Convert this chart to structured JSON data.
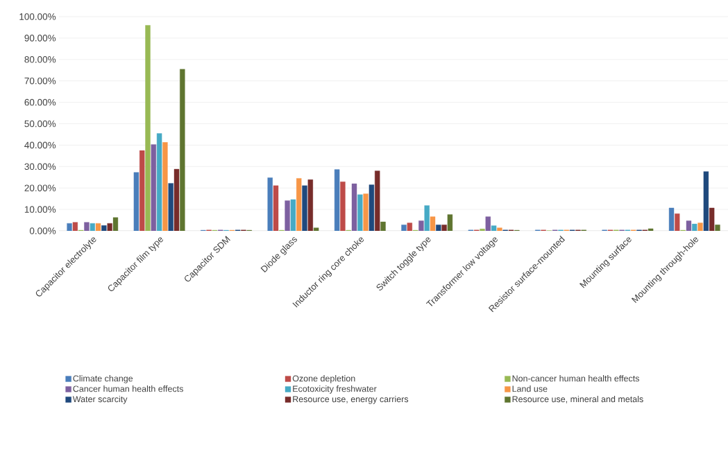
{
  "chart_data": {
    "type": "bar",
    "categories": [
      "Capacitor electrolyte",
      "Capacitor film type",
      "Capacitor SDM",
      "Diode glass",
      "Inductor ring core choke",
      "Switch toggle type",
      "Transformer low voltage",
      "Resistor surface-mounted",
      "Mounting surface",
      "Mounting through-hole"
    ],
    "series": [
      {
        "name": "Climate change",
        "color": "#4a7ebb",
        "values": [
          3.5,
          27.3,
          0.3,
          24.8,
          28.6,
          2.8,
          0.4,
          0.4,
          0.4,
          10.7
        ]
      },
      {
        "name": "Ozone depletion",
        "color": "#be4b48",
        "values": [
          4.0,
          37.5,
          0.4,
          21.1,
          22.9,
          3.7,
          0.4,
          0.4,
          0.4,
          8.0
        ]
      },
      {
        "name": "Non-cancer human health effects",
        "color": "#98b954",
        "values": [
          0.3,
          96.0,
          0.3,
          0.3,
          0.3,
          0.3,
          0.9,
          0.1,
          0.4,
          0.3
        ]
      },
      {
        "name": "Cancer human health effects",
        "color": "#7d60a0",
        "values": [
          4.0,
          40.3,
          0.4,
          14.1,
          22.0,
          4.7,
          6.6,
          0.4,
          0.4,
          4.7
        ]
      },
      {
        "name": "Ecotoxicity freshwater",
        "color": "#46aac5",
        "values": [
          3.5,
          45.5,
          0.3,
          14.6,
          16.9,
          11.8,
          2.4,
          0.4,
          0.4,
          3.2
        ]
      },
      {
        "name": "Land use",
        "color": "#f79646",
        "values": [
          3.5,
          41.3,
          0.3,
          24.5,
          17.3,
          6.6,
          1.4,
          0.4,
          0.4,
          3.7
        ]
      },
      {
        "name": "Water scarcity",
        "color": "#1f497d",
        "values": [
          2.5,
          22.2,
          0.4,
          21.1,
          21.5,
          2.8,
          0.4,
          0.4,
          0.4,
          27.7
        ]
      },
      {
        "name": "Resource use, energy carriers",
        "color": "#772c2a",
        "values": [
          3.5,
          28.8,
          0.4,
          23.9,
          28.0,
          2.8,
          0.4,
          0.4,
          0.4,
          10.7
        ]
      },
      {
        "name": "Resource use, mineral and metals",
        "color": "#5f7530",
        "values": [
          6.2,
          75.5,
          0.3,
          1.4,
          4.2,
          7.6,
          0.3,
          0.4,
          1.0,
          2.8
        ]
      }
    ],
    "ylim": [
      0,
      100
    ],
    "yticks": [
      {
        "value": 0,
        "label": "0.00%"
      },
      {
        "value": 10,
        "label": "10.00%"
      },
      {
        "value": 20,
        "label": "20.00%"
      },
      {
        "value": 30,
        "label": "30.00%"
      },
      {
        "value": 40,
        "label": "40.00%"
      },
      {
        "value": 50,
        "label": "50.00%"
      },
      {
        "value": 60,
        "label": "60.00%"
      },
      {
        "value": 70,
        "label": "70.00%"
      },
      {
        "value": 80,
        "label": "80.00%"
      },
      {
        "value": 90,
        "label": "90.00%"
      },
      {
        "value": 100,
        "label": "100.00%"
      }
    ],
    "grid": "y",
    "legend": "bottom"
  }
}
